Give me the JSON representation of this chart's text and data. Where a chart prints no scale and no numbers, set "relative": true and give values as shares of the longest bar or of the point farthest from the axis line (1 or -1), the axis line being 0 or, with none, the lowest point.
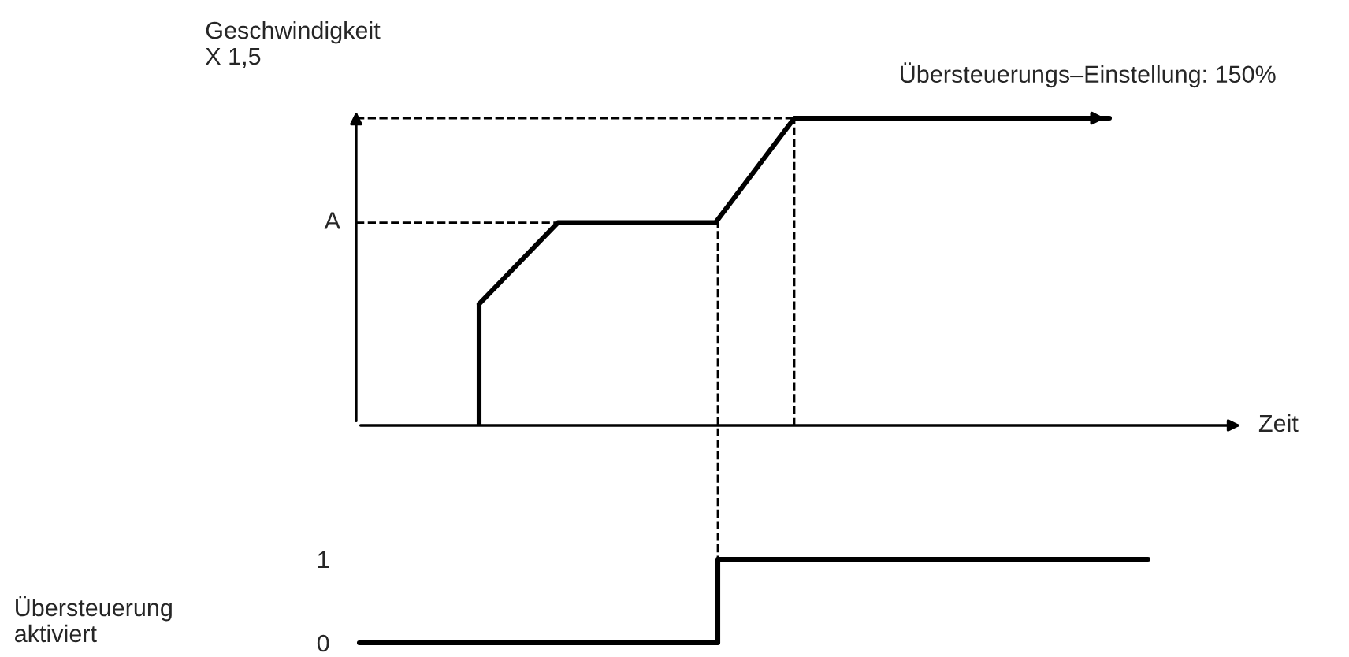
{
  "chart_data": [
    {
      "type": "line",
      "relative": true,
      "xlabel": "Zeit",
      "ylabel": "Geschwindigkeit\nX 1,5",
      "tick_labels": false,
      "grid": false,
      "legend": false,
      "line_style": "solid",
      "marker": "none",
      "categories": [
        null,
        null,
        null,
        null,
        null,
        null,
        null,
        null,
        null
      ],
      "series": [
        {
          "color": "#000000",
          "values": [
            0.395,
            0.66,
            0.66,
            0.66,
            1,
            1,
            1,
            1,
            1
          ]
        }
      ],
      "ref_lines": [
        {
          "axis": "y",
          "value": 0.66,
          "label": "A",
          "line_style": "dashed",
          "color": "#000000"
        },
        {
          "axis": "y",
          "value": 1,
          "line_style": "dashed",
          "color": "#000000"
        }
      ],
      "annotations": [
        {
          "text": "Übersteuerungs–Einstellung: 150%",
          "y": 1
        }
      ]
    },
    {
      "type": "step",
      "ylabel": "Übersteuerung\naktiviert",
      "ylim": [
        0,
        1
      ],
      "yticks": [
        0,
        1
      ],
      "tick_labels": "y",
      "grid": false,
      "legend": false,
      "line_style": "solid",
      "categories": [
        null,
        null,
        null,
        null,
        null,
        null,
        null,
        null,
        null,
        null,
        null,
        null
      ],
      "series": [
        {
          "color": "#000000",
          "values": [
            0,
            0,
            0,
            0,
            0,
            1,
            1,
            1,
            1,
            1,
            1,
            1
          ]
        }
      ]
    }
  ]
}
